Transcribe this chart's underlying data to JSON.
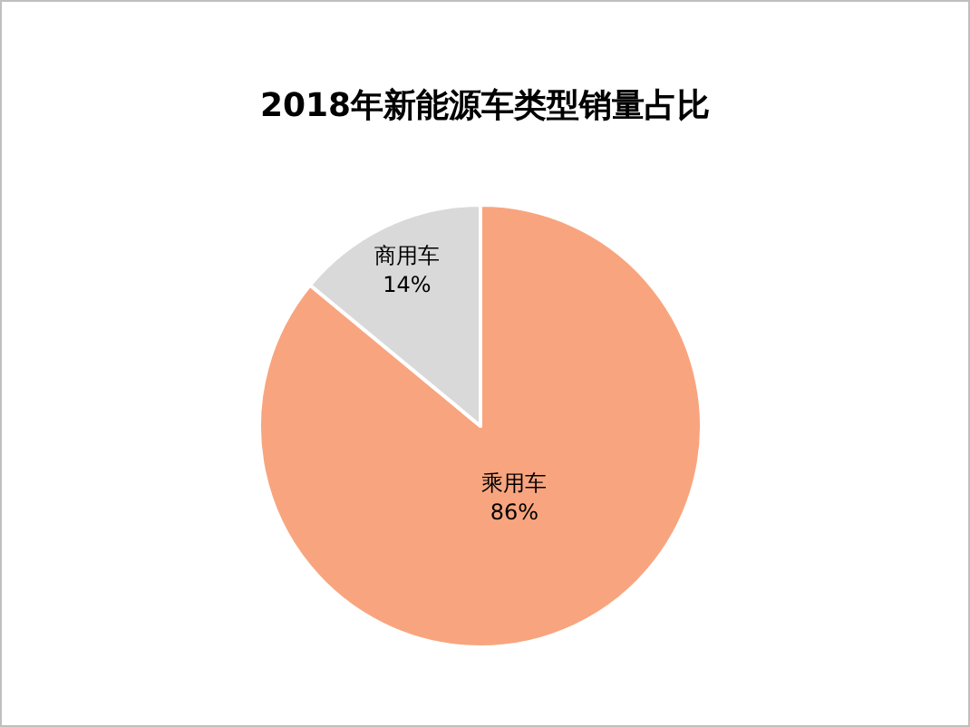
{
  "chart_data": {
    "type": "pie",
    "title": "2018年新能源车类型销量占比",
    "categories": [
      "乘用车",
      "商用车"
    ],
    "values": [
      86,
      14
    ],
    "colors": [
      "#f8a57f",
      "#d9d9d9"
    ],
    "value_labels": [
      "86%",
      "14%"
    ]
  }
}
